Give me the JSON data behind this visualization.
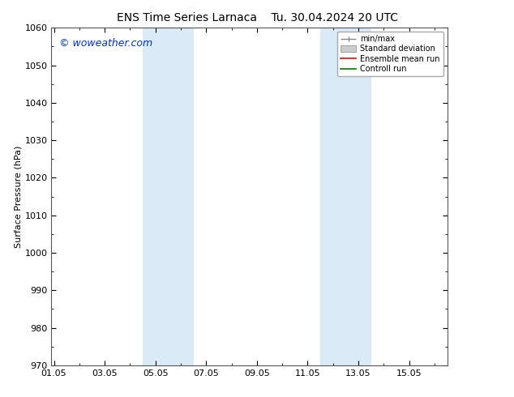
{
  "title_left": "ENS Time Series Larnaca",
  "title_right": "Tu. 30.04.2024 20 UTC",
  "ylabel": "Surface Pressure (hPa)",
  "ylim": [
    970,
    1060
  ],
  "yticks": [
    970,
    980,
    990,
    1000,
    1010,
    1020,
    1030,
    1040,
    1050,
    1060
  ],
  "xtick_labels": [
    "01.05",
    "03.05",
    "05.05",
    "07.05",
    "09.05",
    "11.05",
    "13.05",
    "15.05"
  ],
  "xtick_positions": [
    0,
    2,
    4,
    6,
    8,
    10,
    12,
    14
  ],
  "xlim": [
    -0.1,
    15.5
  ],
  "shaded_bands": [
    {
      "xmin": 3.5,
      "xmax": 5.5
    },
    {
      "xmin": 10.5,
      "xmax": 12.5
    }
  ],
  "shade_color": "#daeaf7",
  "background_color": "#ffffff",
  "watermark_text": "© woweather.com",
  "watermark_color": "#0033cc",
  "legend_labels": [
    "min/max",
    "Standard deviation",
    "Ensemble mean run",
    "Controll run"
  ],
  "legend_line_color": "#888888",
  "legend_std_color": "#cccccc",
  "legend_ens_color": "#ff0000",
  "legend_ctrl_color": "#007700",
  "figsize": [
    6.34,
    4.9
  ],
  "dpi": 100,
  "title_fontsize": 10,
  "ylabel_fontsize": 8,
  "tick_fontsize": 8,
  "legend_fontsize": 7,
  "watermark_fontsize": 9
}
